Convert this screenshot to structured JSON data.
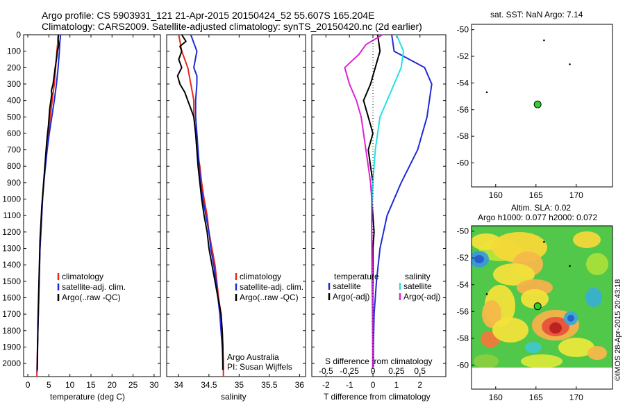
{
  "header": {
    "line1": "Argo profile: CS 5903931_121 21-Apr-2015 20150424_52 55.607S 165.204E",
    "line2": "Climatology: CARS2009. Satellite-adjusted climatology: synTS_20150420.nc (2d earlier)"
  },
  "colors": {
    "climatology": "#e8261c",
    "satellite": "#1f2ad6",
    "argo": "#000000",
    "cyan": "#22e0e8",
    "magenta": "#e020d8",
    "marker": "#2fd02f"
  },
  "footer_note": "©IMOS 28-Apr-2015 20:43:18",
  "chart_data": [
    {
      "type": "line",
      "xlabel": "temperature (deg C)",
      "xlim": [
        -1,
        31.5
      ],
      "xticks": [
        "0",
        "5",
        "10",
        "15",
        "20",
        "25",
        "30"
      ],
      "ylim": [
        2080,
        0
      ],
      "yticks": [
        "0",
        "100",
        "200",
        "300",
        "400",
        "500",
        "600",
        "700",
        "800",
        "900",
        "1000",
        "1100",
        "1200",
        "1300",
        "1400",
        "1500",
        "1600",
        "1700",
        "1800",
        "1900",
        "2000"
      ],
      "legend": {
        "position": "lower-right",
        "entries": [
          "climatology",
          "satellite-adj. clim.",
          "Argo(..raw -QC)"
        ]
      },
      "series": [
        {
          "name": "climatology",
          "color": "#e8261c",
          "points": [
            [
              7.2,
              0
            ],
            [
              7.1,
              50
            ],
            [
              6.9,
              100
            ],
            [
              6.6,
              200
            ],
            [
              6.3,
              300
            ],
            [
              5.8,
              400
            ],
            [
              5.3,
              500
            ],
            [
              4.9,
              600
            ],
            [
              4.5,
              700
            ],
            [
              4.1,
              800
            ],
            [
              3.8,
              900
            ],
            [
              3.5,
              1000
            ],
            [
              3.3,
              1100
            ],
            [
              3.1,
              1200
            ],
            [
              2.9,
              1300
            ],
            [
              2.8,
              1400
            ],
            [
              2.7,
              1500
            ],
            [
              2.6,
              1600
            ],
            [
              2.5,
              1700
            ],
            [
              2.4,
              1800
            ],
            [
              2.3,
              1900
            ],
            [
              2.2,
              2000
            ],
            [
              2.15,
              2080
            ]
          ]
        },
        {
          "name": "satellite-adj. clim.",
          "color": "#1f2ad6",
          "points": [
            [
              7.8,
              0
            ],
            [
              7.6,
              50
            ],
            [
              7.5,
              100
            ],
            [
              7.2,
              200
            ],
            [
              6.8,
              300
            ],
            [
              6.3,
              400
            ],
            [
              5.7,
              500
            ],
            [
              5.1,
              600
            ],
            [
              4.6,
              700
            ],
            [
              4.2,
              800
            ],
            [
              3.8,
              900
            ],
            [
              3.5,
              1000
            ],
            [
              3.3,
              1100
            ],
            [
              3.1,
              1200
            ],
            [
              2.9,
              1300
            ],
            [
              2.8,
              1400
            ],
            [
              2.7,
              1500
            ],
            [
              2.6,
              1600
            ],
            [
              2.5,
              1700
            ],
            [
              2.4,
              1800
            ],
            [
              2.3,
              1900
            ],
            [
              2.25,
              2000
            ],
            [
              2.2,
              2050
            ]
          ]
        },
        {
          "name": "Argo(..raw -QC)",
          "color": "#000000",
          "points": [
            [
              7.3,
              0
            ],
            [
              7.2,
              30
            ],
            [
              7.4,
              60
            ],
            [
              7.0,
              100
            ],
            [
              6.9,
              130
            ],
            [
              6.5,
              200
            ],
            [
              6.0,
              300
            ],
            [
              5.6,
              340
            ],
            [
              5.7,
              360
            ],
            [
              5.2,
              450
            ],
            [
              4.9,
              550
            ],
            [
              4.5,
              650
            ],
            [
              4.2,
              750
            ],
            [
              3.9,
              850
            ],
            [
              3.6,
              950
            ],
            [
              3.3,
              1050
            ],
            [
              3.1,
              1150
            ],
            [
              2.9,
              1250
            ],
            [
              2.8,
              1350
            ],
            [
              2.7,
              1450
            ],
            [
              2.6,
              1550
            ],
            [
              2.5,
              1650
            ],
            [
              2.4,
              1750
            ],
            [
              2.35,
              1850
            ],
            [
              2.3,
              1950
            ],
            [
              2.25,
              2040
            ]
          ]
        }
      ]
    },
    {
      "type": "line",
      "xlabel": "salinity",
      "xlim": [
        33.8,
        36.1
      ],
      "xticks": [
        "34",
        "34.5",
        "35",
        "35.5",
        "36"
      ],
      "ylim": [
        2080,
        0
      ],
      "legend": {
        "position": "lower-right",
        "entries": [
          "climatology",
          "satellite-adj. clim.",
          "Argo(..raw -QC)"
        ]
      },
      "annotation": [
        "Argo Australia",
        "PI: Susan Wijffels"
      ],
      "series": [
        {
          "name": "climatology",
          "color": "#e8261c",
          "points": [
            [
              34.0,
              0
            ],
            [
              34.05,
              100
            ],
            [
              34.15,
              200
            ],
            [
              34.2,
              300
            ],
            [
              34.25,
              400
            ],
            [
              34.25,
              500
            ],
            [
              34.28,
              600
            ],
            [
              34.3,
              700
            ],
            [
              34.35,
              800
            ],
            [
              34.38,
              900
            ],
            [
              34.42,
              1000
            ],
            [
              34.47,
              1100
            ],
            [
              34.5,
              1200
            ],
            [
              34.55,
              1300
            ],
            [
              34.6,
              1400
            ],
            [
              34.63,
              1500
            ],
            [
              34.66,
              1600
            ],
            [
              34.7,
              1700
            ],
            [
              34.72,
              1800
            ],
            [
              34.73,
              1900
            ],
            [
              34.74,
              2000
            ],
            [
              34.74,
              2080
            ]
          ]
        },
        {
          "name": "satellite-adj. clim.",
          "color": "#1f2ad6",
          "points": [
            [
              34.2,
              0
            ],
            [
              34.25,
              50
            ],
            [
              34.3,
              100
            ],
            [
              34.25,
              200
            ],
            [
              34.3,
              250
            ],
            [
              34.3,
              300
            ],
            [
              34.28,
              400
            ],
            [
              34.28,
              500
            ],
            [
              34.3,
              600
            ],
            [
              34.32,
              700
            ],
            [
              34.34,
              800
            ],
            [
              34.36,
              900
            ],
            [
              34.4,
              1000
            ],
            [
              34.45,
              1100
            ],
            [
              34.5,
              1200
            ],
            [
              34.53,
              1300
            ],
            [
              34.58,
              1400
            ],
            [
              34.62,
              1500
            ],
            [
              34.65,
              1600
            ],
            [
              34.68,
              1700
            ],
            [
              34.7,
              1800
            ],
            [
              34.72,
              1900
            ],
            [
              34.73,
              2000
            ],
            [
              34.73,
              2040
            ]
          ]
        },
        {
          "name": "Argo(..raw -QC)",
          "color": "#000000",
          "points": [
            [
              34.05,
              0
            ],
            [
              34.12,
              40
            ],
            [
              34.02,
              70
            ],
            [
              34.05,
              100
            ],
            [
              34.0,
              150
            ],
            [
              34.05,
              200
            ],
            [
              33.98,
              250
            ],
            [
              34.02,
              300
            ],
            [
              34.1,
              350
            ],
            [
              34.15,
              400
            ],
            [
              34.2,
              450
            ],
            [
              34.25,
              500
            ],
            [
              34.28,
              600
            ],
            [
              34.3,
              700
            ],
            [
              34.32,
              800
            ],
            [
              34.35,
              900
            ],
            [
              34.38,
              1000
            ],
            [
              34.42,
              1100
            ],
            [
              34.47,
              1200
            ],
            [
              34.5,
              1300
            ],
            [
              34.55,
              1400
            ],
            [
              34.6,
              1500
            ],
            [
              34.65,
              1600
            ],
            [
              34.7,
              1700
            ],
            [
              34.72,
              1800
            ],
            [
              34.73,
              1900
            ],
            [
              34.73,
              2040
            ]
          ]
        }
      ]
    },
    {
      "type": "line",
      "xlabel": "T difference from climatology",
      "xlabel_top": "S difference from climatology",
      "xlim": [
        -2.6,
        3.1
      ],
      "xticks": [
        "-2",
        "-1",
        "0",
        "1",
        "2"
      ],
      "xticks_top": [
        "-0.5",
        "-0.25",
        "0",
        "0.25",
        "0.5"
      ],
      "ylim": [
        2080,
        0
      ],
      "legend": {
        "position": "lower",
        "temperature_title": "temperature",
        "salinity_title": "salinity",
        "temperature_entries": [
          "satellite",
          "Argo(-adj)"
        ],
        "salinity_entries": [
          "satellite",
          "Argo(-adj)"
        ]
      },
      "series": [
        {
          "name": "satellite",
          "group": "temperature",
          "color": "#1f2ad6",
          "points": [
            [
              0.8,
              0
            ],
            [
              0.9,
              100
            ],
            [
              2.2,
              200
            ],
            [
              2.5,
              300
            ],
            [
              2.3,
              500
            ],
            [
              1.9,
              700
            ],
            [
              1.2,
              900
            ],
            [
              0.6,
              1100
            ],
            [
              0.3,
              1300
            ],
            [
              0.15,
              1500
            ],
            [
              0.05,
              1700
            ],
            [
              0.02,
              1900
            ],
            [
              0.02,
              2020
            ]
          ]
        },
        {
          "name": "Argo(-adj)",
          "group": "temperature",
          "color": "#000000",
          "points": [
            [
              0.2,
              0
            ],
            [
              0.3,
              100
            ],
            [
              0.1,
              200
            ],
            [
              -0.1,
              300
            ],
            [
              -0.4,
              400
            ],
            [
              -0.2,
              500
            ],
            [
              0.0,
              600
            ],
            [
              -0.2,
              700
            ],
            [
              -0.1,
              800
            ],
            [
              0.0,
              900
            ],
            [
              -0.05,
              1000
            ],
            [
              0.0,
              1100
            ],
            [
              0.05,
              1200
            ],
            [
              0.0,
              1300
            ],
            [
              0.0,
              1500
            ],
            [
              0.0,
              1700
            ],
            [
              0.0,
              1900
            ],
            [
              0.0,
              2030
            ]
          ]
        },
        {
          "name": "satellite",
          "group": "salinity",
          "color": "#22e0e8",
          "points": [
            [
              1.0,
              0
            ],
            [
              1.3,
              100
            ],
            [
              1.2,
              200
            ],
            [
              0.9,
              300
            ],
            [
              0.6,
              400
            ],
            [
              0.3,
              500
            ],
            [
              0.1,
              700
            ],
            [
              0.0,
              900
            ],
            [
              -0.05,
              1100
            ],
            [
              -0.05,
              1300
            ],
            [
              -0.05,
              1500
            ],
            [
              -0.03,
              1700
            ],
            [
              -0.02,
              1900
            ],
            [
              -0.02,
              2030
            ]
          ]
        },
        {
          "name": "Argo(-adj)",
          "group": "salinity",
          "color": "#e020d8",
          "points": [
            [
              0.4,
              0
            ],
            [
              -0.3,
              60
            ],
            [
              -0.6,
              120
            ],
            [
              -1.2,
              200
            ],
            [
              -1.0,
              300
            ],
            [
              -0.7,
              400
            ],
            [
              -0.5,
              500
            ],
            [
              -0.4,
              600
            ],
            [
              -0.3,
              700
            ],
            [
              -0.2,
              800
            ],
            [
              -0.1,
              900
            ],
            [
              -0.05,
              1000
            ],
            [
              -0.05,
              1200
            ],
            [
              -0.03,
              1400
            ],
            [
              0.0,
              1600
            ],
            [
              0.0,
              1800
            ],
            [
              0.0,
              2030
            ]
          ]
        }
      ]
    },
    {
      "type": "scatter",
      "title": "sat. SST: NaN Argo: 7.14",
      "xlim": [
        157,
        174.5
      ],
      "ylim": [
        -61.8,
        -49.6
      ],
      "xticks": [
        "160",
        "165",
        "170"
      ],
      "yticks": [
        "-50",
        "-52",
        "-54",
        "-56",
        "-58",
        "-60"
      ],
      "points": [
        [
          165.204,
          -55.607
        ],
        [
          166.0,
          -50.8
        ],
        [
          169.2,
          -52.6
        ],
        [
          158.9,
          -54.7
        ]
      ]
    },
    {
      "type": "heatmap",
      "title_line1": "Altim. SLA: 0.02",
      "title_line2": "Argo h1000: 0.077 h2000: 0.072",
      "xlim": [
        157,
        174.5
      ],
      "ylim": [
        -61.8,
        -49.6
      ],
      "xticks": [
        "160",
        "165",
        "170"
      ],
      "yticks": [
        "-50",
        "-52",
        "-54",
        "-56",
        "-58",
        "-60"
      ],
      "data_extent": [
        -60.2,
        -49.6
      ],
      "points": [
        [
          165.204,
          -55.607
        ],
        [
          166.0,
          -50.8
        ],
        [
          169.2,
          -52.6
        ],
        [
          158.9,
          -54.7
        ]
      ]
    }
  ]
}
